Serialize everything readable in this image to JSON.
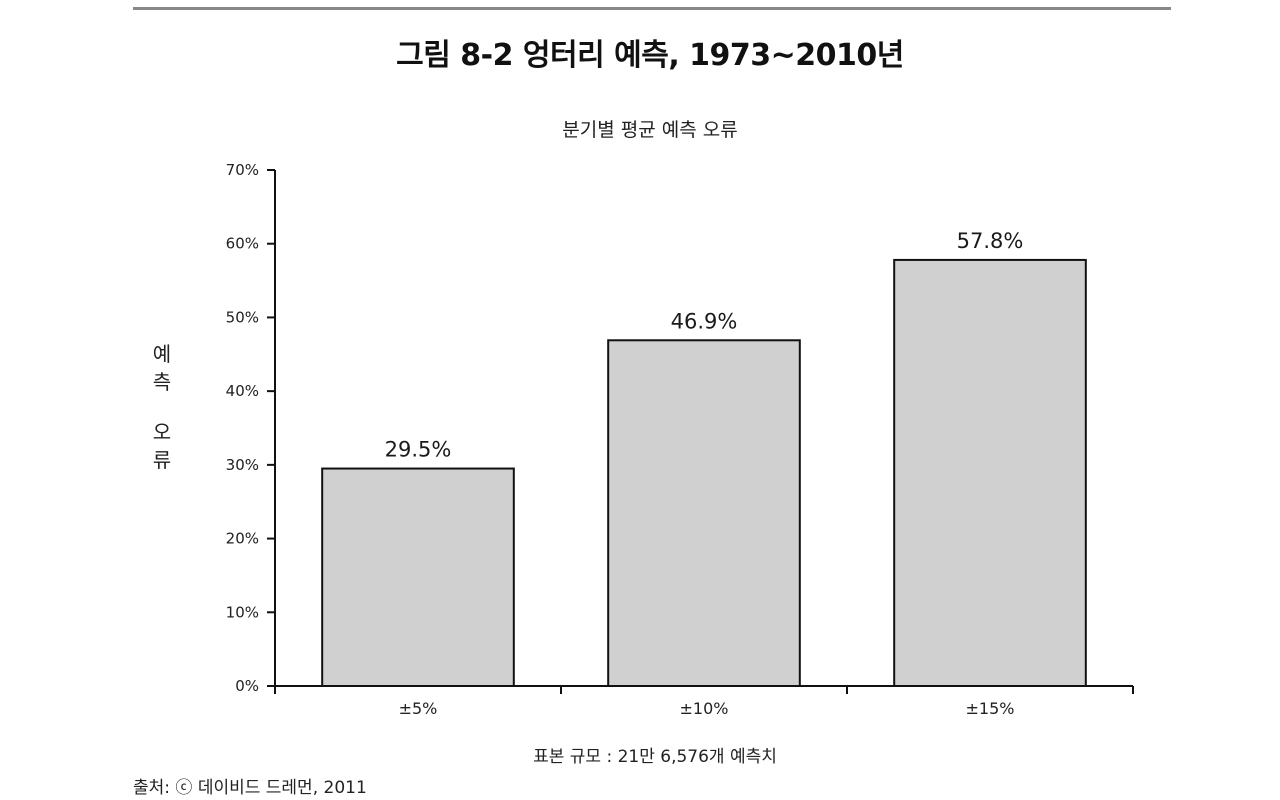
{
  "figure_title": "그림 8-2  엉터리 예측, 1973~2010년",
  "caption": "표본 규모 : 21만 6,576개 예측치",
  "source": "출처: ⓒ 데이비드 드레먼, 2011",
  "colors": {
    "bar_fill": "#d0d0d0",
    "bar_stroke": "#111111",
    "axis": "#111111",
    "top_rule": "#888888"
  },
  "chart_data": {
    "type": "bar",
    "title": "분기별 평균 예측 오류",
    "xlabel": "",
    "ylabel": "예측 오류",
    "ylabel_parts": [
      "예",
      "측",
      "오",
      "류"
    ],
    "categories": [
      "±5%",
      "±10%",
      "±15%"
    ],
    "values": [
      29.5,
      46.9,
      57.8
    ],
    "value_labels": [
      "29.5%",
      "46.9%",
      "57.8%"
    ],
    "ylim": [
      0,
      70
    ],
    "yticks": [
      0,
      10,
      20,
      30,
      40,
      50,
      60,
      70
    ],
    "ytick_labels": [
      "0%",
      "10%",
      "20%",
      "30%",
      "40%",
      "50%",
      "60%",
      "70%"
    ],
    "grid": false,
    "legend": "none"
  }
}
